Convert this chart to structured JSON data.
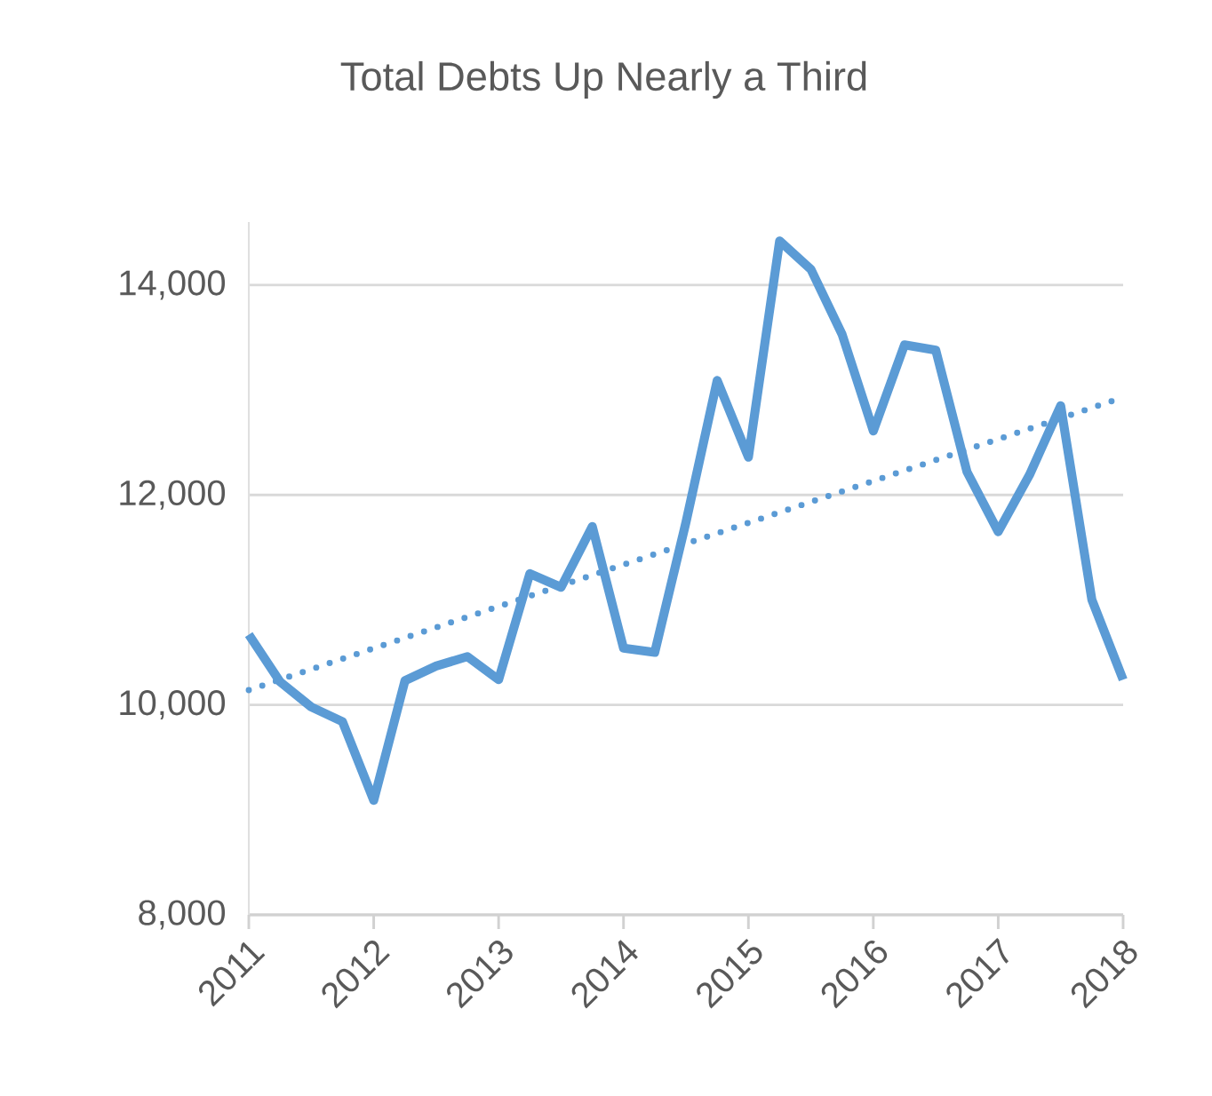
{
  "chart_data": {
    "type": "line",
    "title": "Total Debts Up Nearly a Third",
    "x": [
      2011,
      2011.25,
      2011.5,
      2011.75,
      2012,
      2012.25,
      2012.5,
      2012.75,
      2013,
      2013.25,
      2013.5,
      2013.75,
      2014,
      2014.25,
      2014.5,
      2014.75,
      2015,
      2015.25,
      2015.5,
      2015.75,
      2016,
      2016.25,
      2016.5,
      2016.75,
      2017,
      2017.25,
      2017.5,
      2017.75,
      2018
    ],
    "series": [
      {
        "color": "#5b9bd5",
        "values": [
          10670,
          10220,
          9980,
          9840,
          9090,
          10230,
          10370,
          10460,
          10240,
          11250,
          11120,
          11700,
          10540,
          10500,
          11740,
          13090,
          12360,
          14420,
          14150,
          13530,
          12610,
          13430,
          13380,
          12220,
          11650,
          12190,
          12850,
          11000,
          10240
        ]
      },
      {
        "type": "line",
        "x": [
          2011,
          2018
        ],
        "values": [
          10140,
          12930
        ],
        "color": "#5b9bd5",
        "line_style": "dotted"
      }
    ],
    "xlim": [
      2011,
      2018
    ],
    "xticks": [
      2011,
      2012,
      2013,
      2014,
      2015,
      2016,
      2017,
      2018
    ],
    "ylim": [
      8000,
      14600
    ],
    "yticks": [
      {
        "value": 8000,
        "label": "8,000"
      },
      {
        "value": 10000,
        "label": "10,000"
      },
      {
        "value": 12000,
        "label": "12,000"
      },
      {
        "value": 14000,
        "label": "14,000"
      }
    ],
    "grid": "y",
    "marker": "none",
    "line_style": "solid"
  }
}
